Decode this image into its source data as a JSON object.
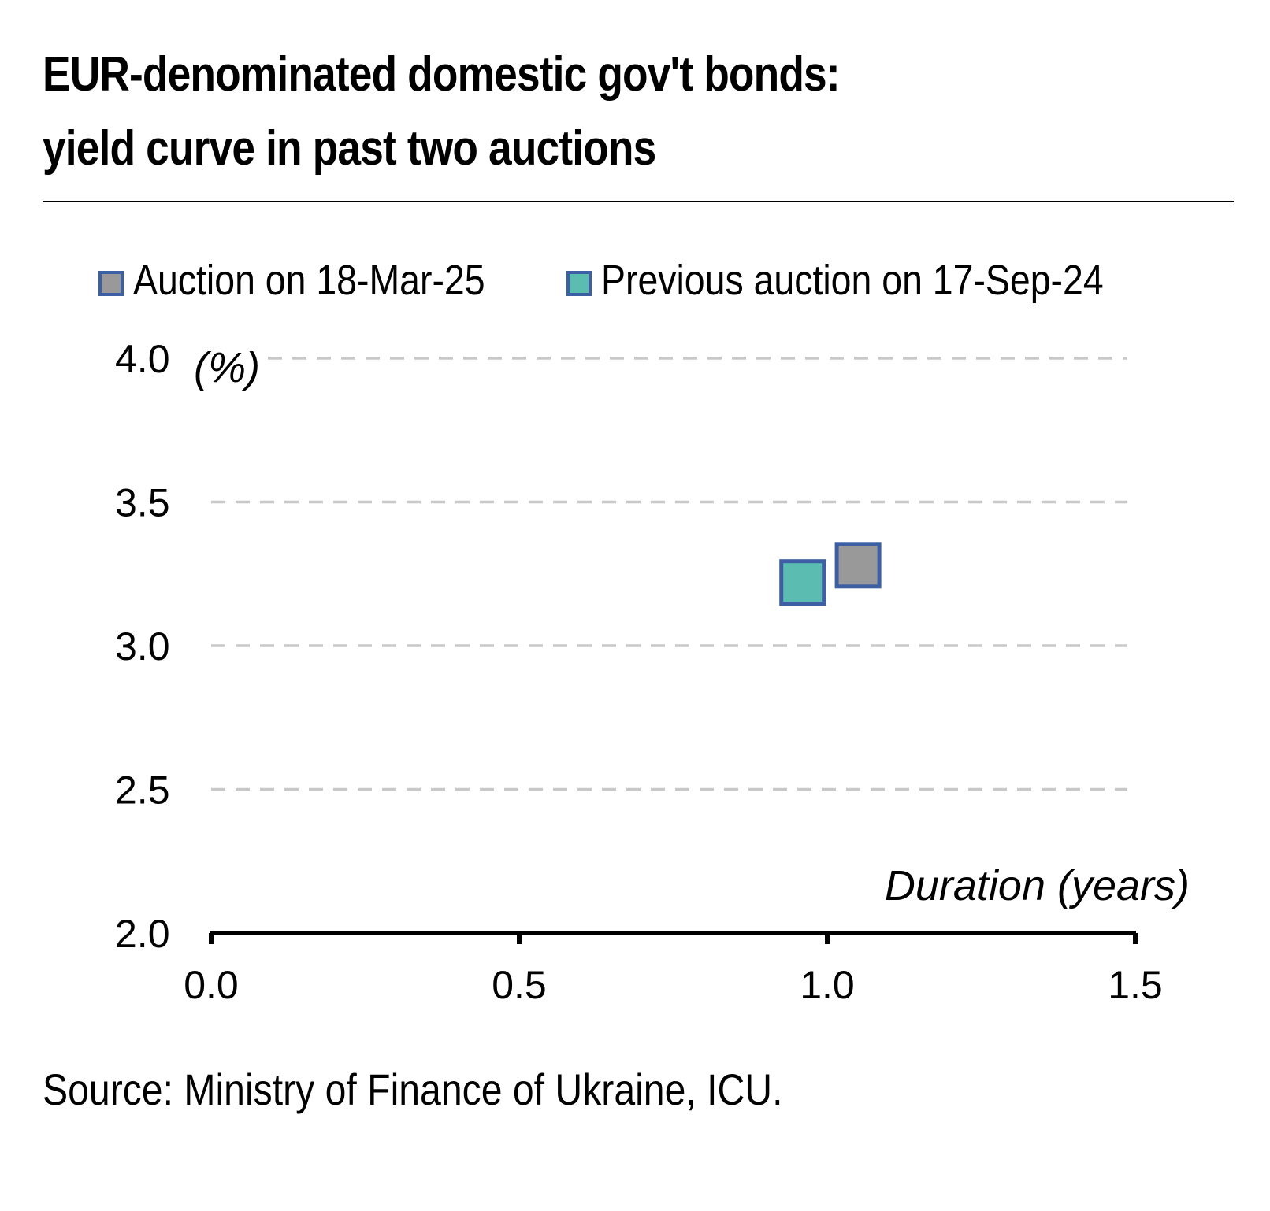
{
  "title_lines": [
    "EUR-denominated domestic gov't bonds:",
    "yield curve in past two auctions"
  ],
  "source": "Source: Ministry of Finance of Ukraine, ICU.",
  "colors": {
    "marker_border": "#3d5fa3",
    "series_current": "#999999",
    "series_previous": "#5bbcb1",
    "gridline": "#c8c8c8",
    "axis": "#000000"
  },
  "chart_data": {
    "type": "scatter",
    "title": "EUR-denominated domestic gov't bonds: yield curve in past two auctions",
    "xlabel": "Duration (years)",
    "ylabel": "(%)",
    "xlim": [
      0.0,
      1.5
    ],
    "ylim": [
      2.0,
      4.0
    ],
    "x_ticks": [
      "0.0",
      "0.5",
      "1.0",
      "1.5"
    ],
    "y_ticks": [
      "2.0",
      "2.5",
      "3.0",
      "3.5",
      "4.0"
    ],
    "grid": "horizontal dashed",
    "legend_position": "top",
    "marker": "square",
    "series": [
      {
        "name": "Auction on 18-Mar-25",
        "color": "#999999",
        "points": [
          {
            "x": 1.05,
            "y": 3.28
          }
        ]
      },
      {
        "name": "Previous auction on 17-Sep-24",
        "color": "#5bbcb1",
        "points": [
          {
            "x": 0.96,
            "y": 3.22
          }
        ]
      }
    ]
  }
}
